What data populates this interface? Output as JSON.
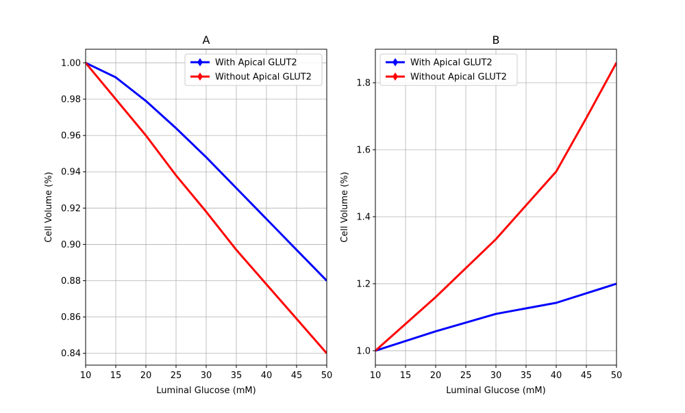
{
  "chart_data": [
    {
      "type": "line",
      "title": "A",
      "xlabel": "Luminal Glucose (mM)",
      "ylabel": "Cell Volume (%)",
      "xlim": [
        10,
        50
      ],
      "ylim": [
        0.8335,
        1.0075
      ],
      "xticks": [
        10,
        15,
        20,
        25,
        30,
        35,
        40,
        45,
        50
      ],
      "xtick_labels": [
        "10",
        "15",
        "20",
        "25",
        "30",
        "35",
        "40",
        "45",
        "50"
      ],
      "yticks": [
        0.84,
        0.86,
        0.88,
        0.9,
        0.92,
        0.94,
        0.96,
        0.98,
        1.0
      ],
      "ytick_labels": [
        "0.84",
        "0.86",
        "0.88",
        "0.90",
        "0.92",
        "0.94",
        "0.96",
        "0.98",
        "1.00"
      ],
      "grid": true,
      "legend_position": "upper right",
      "series": [
        {
          "name": "With Apical GLUT2",
          "color": "#0000ff",
          "marker": "diamond",
          "x": [
            10,
            15,
            20,
            25,
            30,
            35,
            40,
            45,
            50
          ],
          "y": [
            1.0,
            0.992,
            0.979,
            0.964,
            0.948,
            0.931,
            0.914,
            0.897,
            0.88
          ]
        },
        {
          "name": "Without Apical GLUT2",
          "color": "#ff0000",
          "marker": "diamond",
          "x": [
            10,
            15,
            20,
            25,
            30,
            35,
            40,
            45,
            50
          ],
          "y": [
            1.0,
            0.98,
            0.96,
            0.938,
            0.918,
            0.897,
            0.878,
            0.859,
            0.84
          ]
        }
      ]
    },
    {
      "type": "line",
      "title": "B",
      "xlabel": "Luminal Glucose (mM)",
      "ylabel": "Cell Volume (%)",
      "xlim": [
        10,
        50
      ],
      "ylim": [
        0.957,
        1.9
      ],
      "xticks": [
        10,
        15,
        20,
        25,
        30,
        35,
        40,
        45,
        50
      ],
      "xtick_labels": [
        "10",
        "15",
        "20",
        "25",
        "30",
        "35",
        "40",
        "45",
        "50"
      ],
      "yticks": [
        1.0,
        1.2,
        1.4,
        1.6,
        1.8
      ],
      "ytick_labels": [
        "1.0",
        "1.2",
        "1.4",
        "1.6",
        "1.8"
      ],
      "grid": true,
      "legend_position": "upper left",
      "series": [
        {
          "name": "With Apical GLUT2",
          "color": "#0000ff",
          "marker": "diamond",
          "x": [
            10,
            20,
            30,
            40,
            50
          ],
          "y": [
            1.0,
            1.058,
            1.11,
            1.143,
            1.2
          ]
        },
        {
          "name": "Without Apical GLUT2",
          "color": "#ff0000",
          "marker": "diamond",
          "x": [
            10,
            20,
            30,
            40,
            45,
            50
          ],
          "y": [
            1.0,
            1.16,
            1.333,
            1.535,
            1.695,
            1.86
          ]
        }
      ]
    }
  ]
}
